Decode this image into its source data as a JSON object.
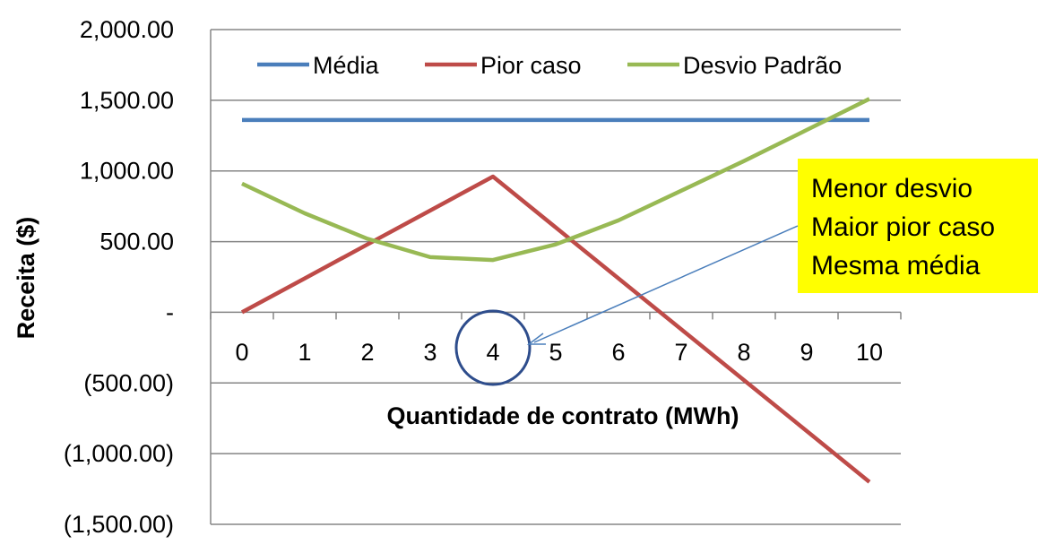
{
  "chart_data": {
    "type": "line",
    "xlabel": "Quantidade de contrato (MWh)",
    "ylabel": "Receita ($)",
    "ylim": [
      -1500,
      2000
    ],
    "y_ticks": [
      {
        "value": 2000,
        "label": "2,000.00"
      },
      {
        "value": 1500,
        "label": "1,500.00"
      },
      {
        "value": 1000,
        "label": "1,000.00"
      },
      {
        "value": 500,
        "label": "500.00"
      },
      {
        "value": 0,
        "label": "-"
      },
      {
        "value": -500,
        "label": "(500.00)"
      },
      {
        "value": -1000,
        "label": "(1,000.00)"
      },
      {
        "value": -1500,
        "label": "(1,500.00)"
      }
    ],
    "x": [
      "0",
      "1",
      "2",
      "3",
      "4",
      "5",
      "6",
      "7",
      "8",
      "9",
      "10"
    ],
    "grid": true,
    "legend_position": "top",
    "series": [
      {
        "name": "Média",
        "color": "#4a7ebb",
        "values": [
          1360,
          1360,
          1360,
          1360,
          1360,
          1360,
          1360,
          1360,
          1360,
          1360,
          1360
        ]
      },
      {
        "name": "Pior caso",
        "color": "#be4b48",
        "values": [
          0,
          240,
          480,
          720,
          960,
          600,
          240,
          -120,
          -480,
          -840,
          -1200
        ]
      },
      {
        "name": "Desvio Padrão",
        "color": "#98b954",
        "values": [
          910,
          700,
          520,
          390,
          370,
          480,
          650,
          860,
          1070,
          1290,
          1510
        ]
      }
    ],
    "annotation": {
      "lines": [
        "Menor desvio",
        "Maior pior caso",
        "Mesma média"
      ],
      "background": "#ffff00",
      "highlight_category": "4"
    }
  }
}
